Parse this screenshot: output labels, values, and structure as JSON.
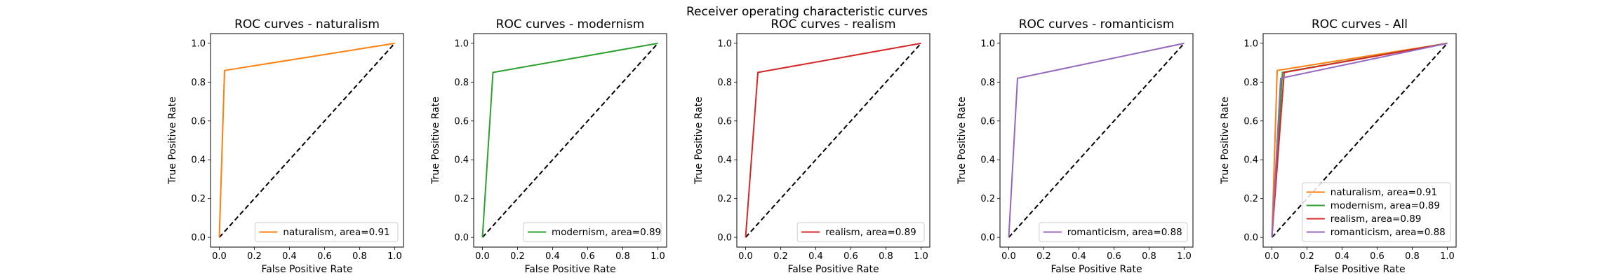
{
  "figure": {
    "suptitle": "Receiver operating characteristic curves",
    "colors": {
      "naturalism": "#ff7f0e",
      "modernism": "#2ca02c",
      "realism": "#d62728",
      "romanticism": "#9467bd",
      "diagonal": "#000000"
    }
  },
  "chart_data": [
    {
      "type": "line",
      "title": "ROC curves - naturalism",
      "xlabel": "False Positive Rate",
      "ylabel": "True Positive Rate",
      "xlim": [
        0.0,
        1.0
      ],
      "ylim": [
        0.0,
        1.0
      ],
      "xticks": [
        "0.0",
        "0.2",
        "0.4",
        "0.6",
        "0.8",
        "1.0"
      ],
      "yticks": [
        "0.0",
        "0.2",
        "0.4",
        "0.6",
        "0.8",
        "1.0"
      ],
      "grid": false,
      "legend_position": "lower-right",
      "series": [
        {
          "name": "naturalism, area=0.91",
          "color_key": "naturalism",
          "x": [
            0.0,
            0.03,
            1.0
          ],
          "y": [
            0.0,
            0.86,
            1.0
          ]
        }
      ],
      "reference_line": {
        "x": [
          0,
          1
        ],
        "y": [
          0,
          1
        ],
        "style": "dashed"
      }
    },
    {
      "type": "line",
      "title": "ROC curves - modernism",
      "xlabel": "False Positive Rate",
      "ylabel": "True Positive Rate",
      "xlim": [
        0.0,
        1.0
      ],
      "ylim": [
        0.0,
        1.0
      ],
      "xticks": [
        "0.0",
        "0.2",
        "0.4",
        "0.6",
        "0.8",
        "1.0"
      ],
      "yticks": [
        "0.0",
        "0.2",
        "0.4",
        "0.6",
        "0.8",
        "1.0"
      ],
      "grid": false,
      "legend_position": "lower-right",
      "series": [
        {
          "name": "modernism, area=0.89",
          "color_key": "modernism",
          "x": [
            0.0,
            0.06,
            1.0
          ],
          "y": [
            0.0,
            0.85,
            1.0
          ]
        }
      ],
      "reference_line": {
        "x": [
          0,
          1
        ],
        "y": [
          0,
          1
        ],
        "style": "dashed"
      }
    },
    {
      "type": "line",
      "title": "ROC curves - realism",
      "xlabel": "False Positive Rate",
      "ylabel": "True Positive Rate",
      "xlim": [
        0.0,
        1.0
      ],
      "ylim": [
        0.0,
        1.0
      ],
      "xticks": [
        "0.0",
        "0.2",
        "0.4",
        "0.6",
        "0.8",
        "1.0"
      ],
      "yticks": [
        "0.0",
        "0.2",
        "0.4",
        "0.6",
        "0.8",
        "1.0"
      ],
      "grid": false,
      "legend_position": "lower-right",
      "series": [
        {
          "name": "realism, area=0.89",
          "color_key": "realism",
          "x": [
            0.0,
            0.07,
            1.0
          ],
          "y": [
            0.0,
            0.85,
            1.0
          ]
        }
      ],
      "reference_line": {
        "x": [
          0,
          1
        ],
        "y": [
          0,
          1
        ],
        "style": "dashed"
      }
    },
    {
      "type": "line",
      "title": "ROC curves - romanticism",
      "xlabel": "False Positive Rate",
      "ylabel": "True Positive Rate",
      "xlim": [
        0.0,
        1.0
      ],
      "ylim": [
        0.0,
        1.0
      ],
      "xticks": [
        "0.0",
        "0.2",
        "0.4",
        "0.6",
        "0.8",
        "1.0"
      ],
      "yticks": [
        "0.0",
        "0.2",
        "0.4",
        "0.6",
        "0.8",
        "1.0"
      ],
      "grid": false,
      "legend_position": "lower-right",
      "series": [
        {
          "name": "romanticism, area=0.88",
          "color_key": "romanticism",
          "x": [
            0.0,
            0.05,
            1.0
          ],
          "y": [
            0.0,
            0.82,
            1.0
          ]
        }
      ],
      "reference_line": {
        "x": [
          0,
          1
        ],
        "y": [
          0,
          1
        ],
        "style": "dashed"
      }
    },
    {
      "type": "line",
      "title": "ROC curves - All",
      "xlabel": "False Positive Rate",
      "ylabel": "True Positive Rate",
      "xlim": [
        0.0,
        1.0
      ],
      "ylim": [
        0.0,
        1.0
      ],
      "xticks": [
        "0.0",
        "0.2",
        "0.4",
        "0.6",
        "0.8",
        "1.0"
      ],
      "yticks": [
        "0.0",
        "0.2",
        "0.4",
        "0.6",
        "0.8",
        "1.0"
      ],
      "grid": false,
      "legend_position": "lower-right",
      "series": [
        {
          "name": "naturalism, area=0.91",
          "color_key": "naturalism",
          "x": [
            0.0,
            0.03,
            1.0
          ],
          "y": [
            0.0,
            0.86,
            1.0
          ]
        },
        {
          "name": "modernism, area=0.89",
          "color_key": "modernism",
          "x": [
            0.0,
            0.06,
            1.0
          ],
          "y": [
            0.0,
            0.85,
            1.0
          ]
        },
        {
          "name": "realism, area=0.89",
          "color_key": "realism",
          "x": [
            0.0,
            0.07,
            1.0
          ],
          "y": [
            0.0,
            0.85,
            1.0
          ]
        },
        {
          "name": "romanticism, area=0.88",
          "color_key": "romanticism",
          "x": [
            0.0,
            0.05,
            1.0
          ],
          "y": [
            0.0,
            0.82,
            1.0
          ]
        }
      ],
      "reference_line": {
        "x": [
          0,
          1
        ],
        "y": [
          0,
          1
        ],
        "style": "dashed"
      }
    }
  ]
}
